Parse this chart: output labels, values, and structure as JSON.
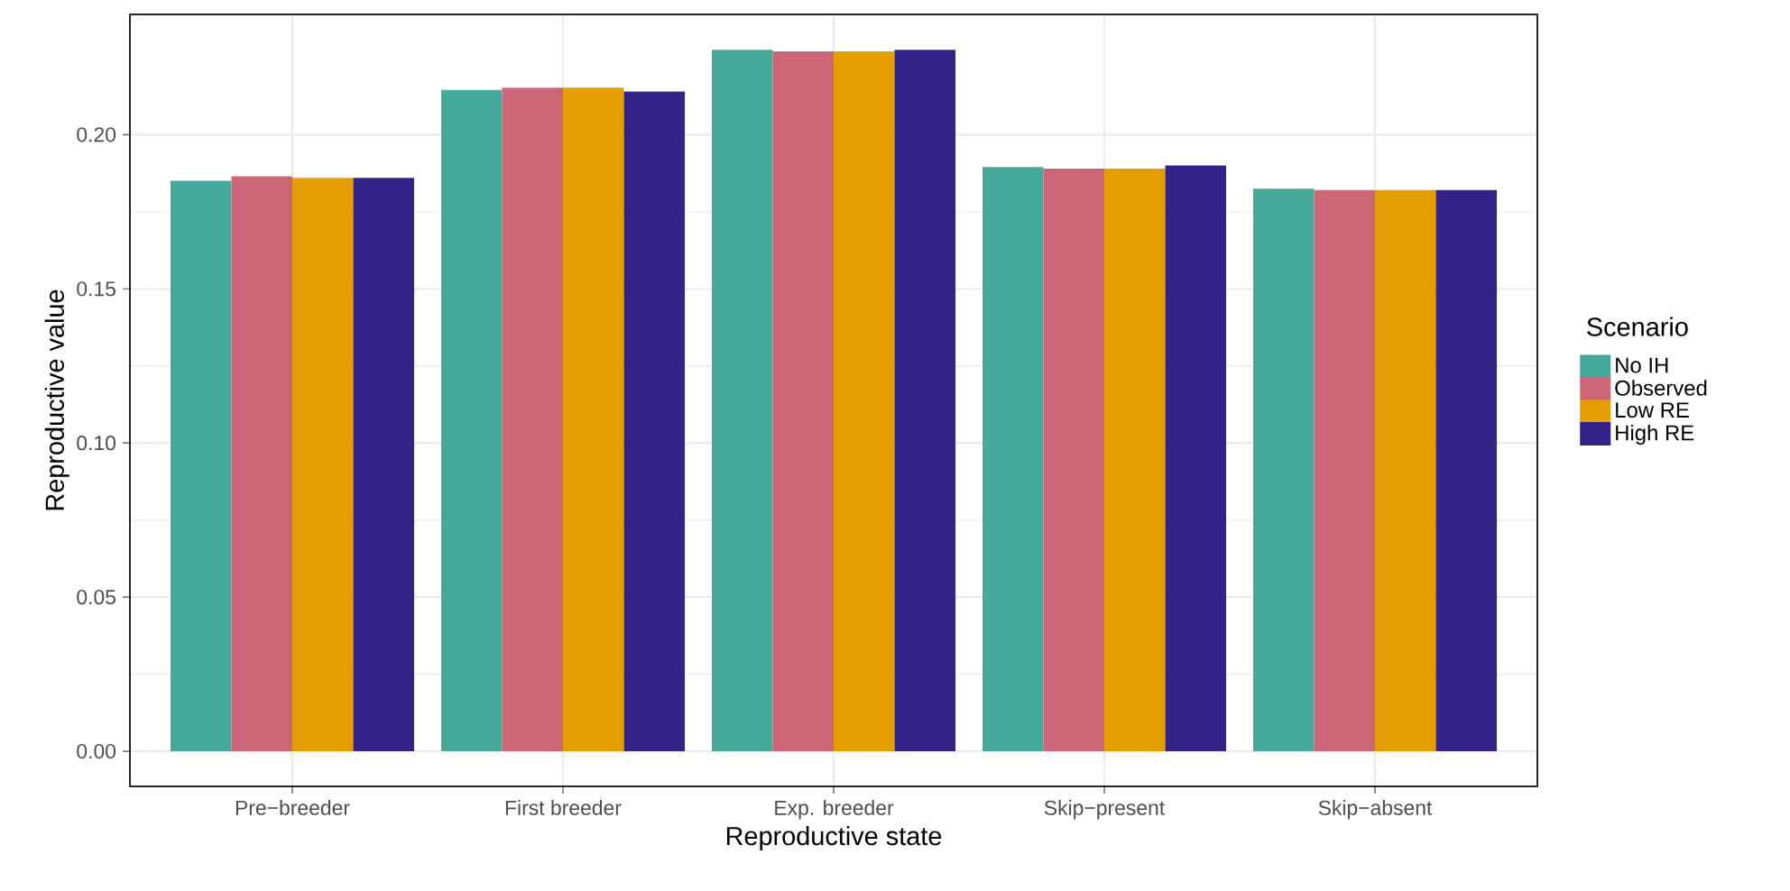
{
  "chart_data": {
    "type": "bar",
    "xlabel": "Reproductive state",
    "ylabel": "Reproductive value",
    "legend_title": "Scenario",
    "categories": [
      "Pre−breeder",
      "First breeder",
      "Exp. breeder",
      "Skip−present",
      "Skip−absent"
    ],
    "series": [
      {
        "name": "No IH",
        "color": "#45aa9a",
        "values": [
          0.185,
          0.2145,
          0.2275,
          0.1895,
          0.1825
        ]
      },
      {
        "name": "Observed",
        "color": "#cc6677",
        "values": [
          0.1865,
          0.2152,
          0.227,
          0.189,
          0.182
        ]
      },
      {
        "name": "Low RE",
        "color": "#e59e00",
        "values": [
          0.186,
          0.2152,
          0.227,
          0.189,
          0.182
        ]
      },
      {
        "name": "High RE",
        "color": "#332288",
        "values": [
          0.186,
          0.214,
          0.2275,
          0.19,
          0.182
        ]
      }
    ],
    "ylim": [
      -0.0114,
      0.239
    ],
    "yticks": [
      {
        "value": 0,
        "label": "0.00"
      },
      0.05,
      {
        "value": 0.1,
        "label": "0.10"
      },
      0.15,
      {
        "value": 0.2,
        "label": "0.20"
      }
    ],
    "grid": true,
    "legend": "right"
  }
}
